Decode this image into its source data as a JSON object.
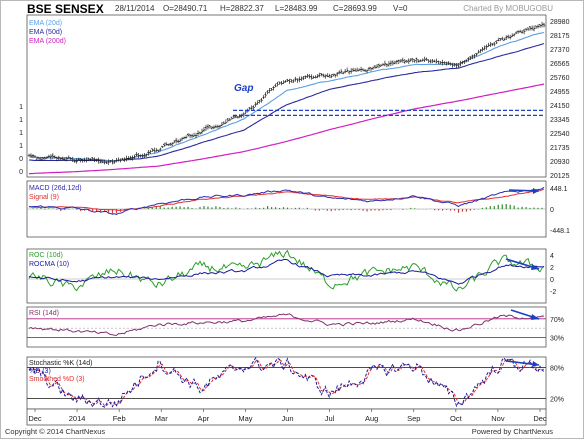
{
  "header": {
    "title": "BSE SENSEX",
    "date": "28/11/2014",
    "open": "O=28490.71",
    "high": "H=28822.37",
    "low": "L=28483.99",
    "close": "C=28693.99",
    "volume": "V=0",
    "credit": "Charted By MOBUGOBU"
  },
  "footer": {
    "copyright": "Copyright © 2014 ChartNexus",
    "powered": "Powered by ChartNexus"
  },
  "colors": {
    "price_bar": "#1a1a1a",
    "ema20": "#5aa0e6",
    "ema50": "#2a2aa0",
    "ema200": "#d020c0",
    "macd": "#2a2ab4",
    "signal": "#e03030",
    "histogram_pos": "#2e8b2e",
    "histogram_neg": "#d04040",
    "roc": "#2aa02a",
    "rocma": "#1a1a9c",
    "rsi": "#803070",
    "stoch_k": "#1a1a9c",
    "stoch_d": "#e03030",
    "band": "#b02080",
    "annotation": "#1a40c0",
    "gap_line": "#2040c0"
  },
  "chart_data": [
    {
      "type": "candlestick",
      "panel": "price",
      "legend": [
        "EMA (20d)",
        "EMA (50d)",
        "EMA (200d)"
      ],
      "y_ticks": [
        "28980",
        "28175",
        "27370",
        "26565",
        "25760",
        "24955",
        "24150",
        "23345",
        "22540",
        "21735",
        "20930",
        "20125"
      ],
      "ylim": [
        19700,
        29300
      ],
      "left_axis_labels": [
        "1",
        "1",
        "1",
        "1",
        "0",
        "0"
      ],
      "annotation": "Gap",
      "gap_levels": [
        23350,
        23650
      ],
      "x": [
        "Dec",
        "2014",
        "Feb",
        "Mar",
        "Apr",
        "May",
        "Jun",
        "Jul",
        "Aug",
        "Sep",
        "Oct",
        "Nov",
        "Dec"
      ],
      "close_monthly": [
        21000,
        20800,
        20600,
        21300,
        22400,
        23500,
        25400,
        25700,
        26200,
        26700,
        26300,
        27900,
        28700
      ],
      "ema20_monthly": [
        20900,
        20800,
        20650,
        21150,
        22100,
        23100,
        24800,
        25400,
        25900,
        26400,
        26400,
        27500,
        28300
      ],
      "ema50_monthly": [
        20700,
        20700,
        20650,
        20900,
        21700,
        22500,
        24000,
        24900,
        25400,
        25900,
        26150,
        26900,
        27600
      ],
      "ema200_monthly": [
        19900,
        20000,
        20150,
        20350,
        20750,
        21200,
        21800,
        22500,
        23150,
        23750,
        24200,
        24700,
        25200
      ]
    },
    {
      "type": "line",
      "panel": "macd",
      "legend": [
        "MACD (26d,12d)",
        "Signal (9)"
      ],
      "y_ticks": [
        "448.1",
        "0",
        "-448.1"
      ],
      "ylim": [
        -600,
        600
      ],
      "macd_monthly": [
        60,
        20,
        -120,
        120,
        250,
        300,
        420,
        220,
        170,
        300,
        70,
        320,
        460
      ],
      "signal_monthly": [
        50,
        40,
        -40,
        60,
        210,
        270,
        360,
        280,
        200,
        260,
        130,
        250,
        420
      ]
    },
    {
      "type": "line",
      "panel": "roc",
      "legend": [
        "ROC (10d)",
        "ROCMA (10)"
      ],
      "y_ticks": [
        "4",
        "2",
        "0",
        "-2"
      ],
      "ylim": [
        -4,
        5
      ],
      "roc_monthly": [
        0.8,
        -1.5,
        1.5,
        -1.0,
        2.0,
        1.5,
        4.5,
        -0.8,
        1.0,
        2.0,
        -2.0,
        3.0,
        2.0
      ],
      "rocma_monthly": [
        0.5,
        -0.5,
        0.3,
        0.0,
        1.0,
        1.2,
        3.0,
        0.5,
        0.5,
        1.3,
        -0.8,
        2.3,
        2.2
      ]
    },
    {
      "type": "line",
      "panel": "rsi",
      "legend": [
        "RSI (14d)"
      ],
      "y_ticks": [
        "70%",
        "30%"
      ],
      "ylim": [
        10,
        95
      ],
      "rsi_monthly": [
        52,
        45,
        35,
        58,
        62,
        65,
        78,
        58,
        60,
        70,
        45,
        75,
        72
      ]
    },
    {
      "type": "line",
      "panel": "stochastic",
      "legend": [
        "Stochastic %K (14d)",
        "%D (3)",
        "Smoothed %D (3)"
      ],
      "y_ticks": [
        "80%",
        "20%"
      ],
      "ylim": [
        0,
        100
      ],
      "k_monthly": [
        80,
        20,
        10,
        90,
        40,
        85,
        85,
        30,
        70,
        85,
        10,
        90,
        80
      ],
      "d_monthly": [
        75,
        30,
        15,
        85,
        45,
        80,
        85,
        40,
        65,
        80,
        20,
        85,
        82
      ]
    }
  ]
}
